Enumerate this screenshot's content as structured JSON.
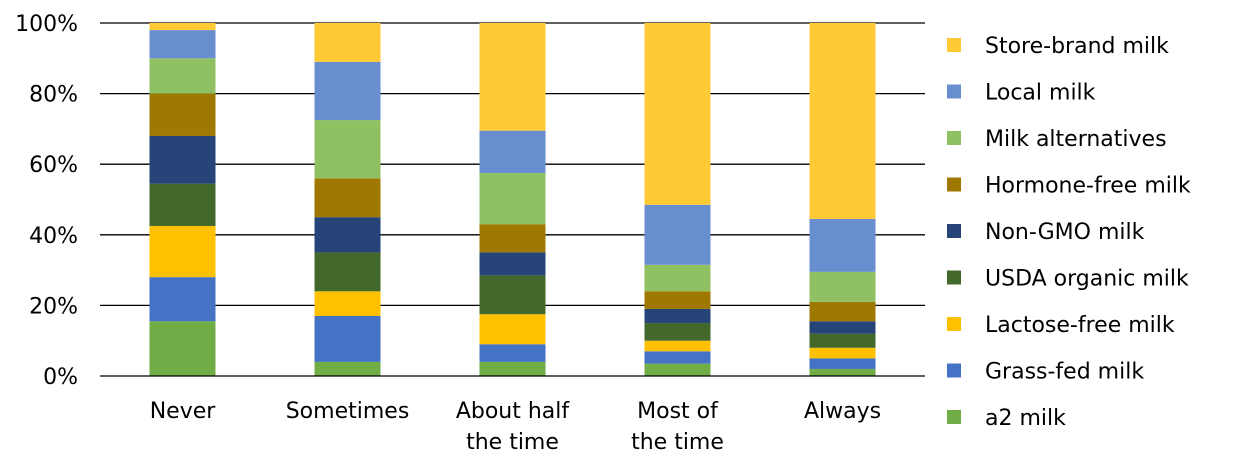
{
  "chart_data": {
    "type": "bar",
    "stacked": true,
    "categories": [
      [
        "Never"
      ],
      [
        "Sometimes"
      ],
      [
        "About half",
        "the time"
      ],
      [
        "Most of",
        "the time"
      ],
      [
        "Always"
      ]
    ],
    "ylim": [
      0,
      100
    ],
    "yticks": [
      {
        "value": 0,
        "label": "0%"
      },
      {
        "value": 20,
        "label": "20%"
      },
      {
        "value": 40,
        "label": "40%"
      },
      {
        "value": 60,
        "label": "60%"
      },
      {
        "value": 80,
        "label": "80%"
      },
      {
        "value": 100,
        "label": "100%"
      }
    ],
    "grid": true,
    "legend_position": "right",
    "series": [
      {
        "name": "a2 milk",
        "color": "#70AD47",
        "values": [
          15.5,
          4,
          4,
          3.5,
          2
        ]
      },
      {
        "name": "Grass-fed milk",
        "color": "#4472C4",
        "values": [
          12.5,
          13,
          5,
          3.5,
          3
        ]
      },
      {
        "name": "Lactose-free milk",
        "color": "#FFC000",
        "values": [
          14.5,
          7,
          8.5,
          3,
          3
        ]
      },
      {
        "name": "USDA organic milk",
        "color": "#43682B",
        "values": [
          12,
          11,
          11,
          5,
          4
        ]
      },
      {
        "name": "Non-GMO milk",
        "color": "#264478",
        "values": [
          13.5,
          10,
          6.5,
          4,
          3.5
        ]
      },
      {
        "name": "Hormone-free milk",
        "color": "#9E7800",
        "values": [
          12,
          11,
          8,
          5,
          5.5
        ]
      },
      {
        "name": "Milk alternatives",
        "color": "#8FC062",
        "values": [
          10,
          16.5,
          14.5,
          7.5,
          8.5
        ]
      },
      {
        "name": "Local milk",
        "color": "#698ED0",
        "values": [
          8,
          16.5,
          12,
          17,
          15
        ]
      },
      {
        "name": "Store-brand milk",
        "color": "#FFCA33",
        "values": [
          2,
          11,
          30.5,
          51.5,
          55.5
        ]
      }
    ]
  }
}
